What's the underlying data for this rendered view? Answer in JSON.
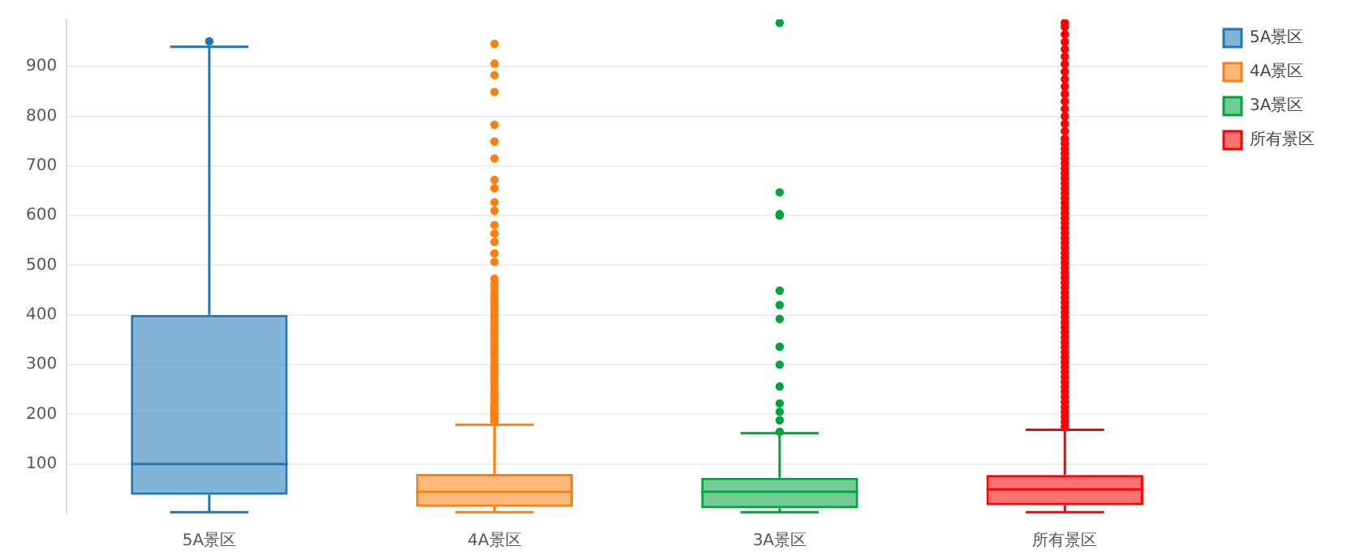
{
  "chart_data": {
    "type": "box",
    "categories": [
      "5A景区",
      "4A景区",
      "3A景区",
      "所有景区"
    ],
    "series": [
      {
        "name": "5A景区",
        "color": "#1f77b4",
        "boxes": [
          {
            "low": 3,
            "q1": 38,
            "median": 100,
            "q3": 400,
            "high": 940,
            "outliers": [
              951
            ]
          },
          null,
          null,
          null
        ]
      },
      {
        "name": "4A景区",
        "color": "#ff7f0e",
        "boxes": [
          null,
          {
            "low": 3,
            "q1": 14,
            "median": 44,
            "q3": 80,
            "high": 179,
            "outliers": [
              185,
              190,
              195,
              200,
              205,
              210,
              215,
              220,
              228,
              235,
              242,
              250,
              258,
              265,
              272,
              280,
              288,
              295,
              302,
              310,
              318,
              326,
              334,
              342,
              350,
              358,
              366,
              374,
              382,
              390,
              398,
              406,
              414,
              422,
              430,
              438,
              446,
              455,
              463,
              473,
              507,
              524,
              547,
              564,
              581,
              610,
              627,
              655,
              672,
              715,
              749,
              783,
              849,
              883,
              906,
              946
            ]
          },
          null,
          null
        ]
      },
      {
        "name": "3A景区",
        "color": "#00a33c",
        "boxes": [
          null,
          null,
          {
            "low": 3,
            "q1": 11,
            "median": 44,
            "q3": 72,
            "high": 162,
            "outliers": [
              165,
              188,
              205,
              222,
              256,
              300,
              336,
              392,
              420,
              449,
              600,
              603,
              647,
              988
            ]
          },
          null
        ]
      },
      {
        "name": "所有景区",
        "color": "#ff0000",
        "boxes": [
          null,
          null,
          null,
          {
            "low": 3,
            "q1": 17,
            "median": 49,
            "q3": 78,
            "high": 169,
            "outliers": [
              175,
              185,
              195,
              205,
              215,
              225,
              235,
              245,
              255,
              265,
              275,
              285,
              295,
              305,
              315,
              325,
              335,
              345,
              355,
              365,
              375,
              385,
              395,
              405,
              415,
              425,
              435,
              445,
              455,
              465,
              475,
              485,
              495,
              505,
              515,
              525,
              535,
              545,
              555,
              565,
              575,
              585,
              595,
              605,
              615,
              625,
              635,
              645,
              655,
              665,
              675,
              685,
              695,
              705,
              715,
              725,
              735,
              745,
              755,
              770,
              785,
              800,
              815,
              830,
              845,
              860,
              875,
              890,
              905,
              920,
              935,
              950,
              965,
              980,
              988
            ]
          }
        ]
      }
    ],
    "ylim": [
      0,
      995
    ],
    "yticks": [
      100,
      200,
      300,
      400,
      500,
      600,
      700,
      800,
      900
    ],
    "grid": "y",
    "legend": "top right",
    "marker": "circle"
  }
}
